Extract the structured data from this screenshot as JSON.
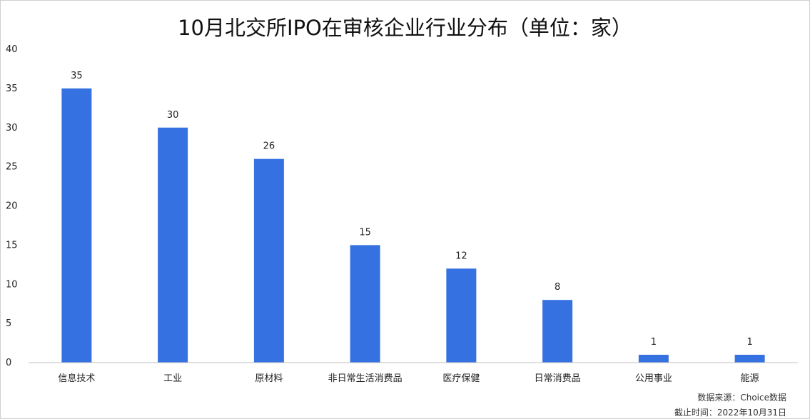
{
  "chart_data": {
    "type": "bar",
    "title": "10月北交所IPO在审核企业行业分布（单位：家）",
    "categories": [
      "信息技术",
      "工业",
      "原材料",
      "非日常生活消费品",
      "医疗保健",
      "日常消费品",
      "公用事业",
      "能源"
    ],
    "values": [
      35,
      30,
      26,
      15,
      12,
      8,
      1,
      1
    ],
    "ylim": [
      0,
      40
    ],
    "yticks": [
      0,
      5,
      10,
      15,
      20,
      25,
      30,
      35,
      40
    ],
    "xlabel": "",
    "ylabel": "",
    "grid": false,
    "legend": "none",
    "bar_color": "#3571e1"
  },
  "footer": {
    "source": "数据来源：Choice数据",
    "cutoff": "截止时间：2022年10月31日"
  }
}
